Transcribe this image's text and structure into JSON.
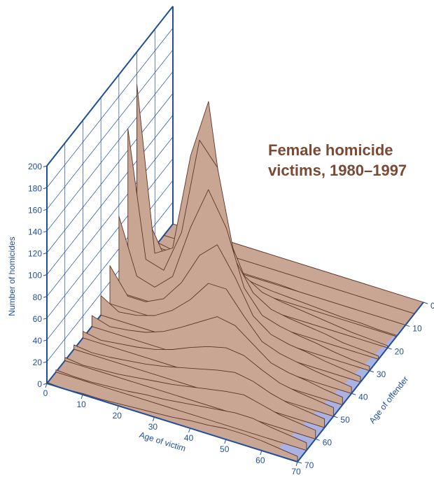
{
  "chart_data": {
    "type": "surface",
    "title": "Female homicide victims, 1980–1997",
    "xlabel": "Age of victim",
    "ylabel": "Age of offender",
    "zlabel": "Number of homicides",
    "x": [
      0,
      5,
      10,
      15,
      20,
      25,
      30,
      35,
      40,
      45,
      50,
      55,
      60,
      65,
      70
    ],
    "y": [
      0,
      5,
      10,
      15,
      20,
      25,
      30,
      35,
      40,
      45,
      50,
      55,
      60,
      65,
      70
    ],
    "z": [
      [
        0,
        0,
        0,
        0,
        0,
        0,
        0,
        0,
        0,
        0,
        0,
        0,
        0,
        0,
        0
      ],
      [
        0,
        0,
        0,
        0,
        0,
        0,
        0,
        0,
        0,
        0,
        0,
        0,
        0,
        0,
        0
      ],
      [
        5,
        2,
        8,
        6,
        2,
        1,
        1,
        1,
        0,
        0,
        0,
        0,
        0,
        0,
        0
      ],
      [
        40,
        8,
        25,
        60,
        30,
        12,
        8,
        6,
        5,
        4,
        3,
        2,
        2,
        1,
        1
      ],
      [
        170,
        20,
        30,
        120,
        175,
        60,
        25,
        15,
        12,
        10,
        8,
        6,
        4,
        3,
        2
      ],
      [
        140,
        25,
        20,
        60,
        150,
        130,
        50,
        25,
        15,
        12,
        10,
        8,
        5,
        4,
        3
      ],
      [
        70,
        20,
        15,
        30,
        80,
        120,
        90,
        40,
        20,
        15,
        12,
        10,
        7,
        5,
        4
      ],
      [
        35,
        12,
        12,
        20,
        40,
        70,
        85,
        60,
        30,
        18,
        14,
        12,
        9,
        7,
        5
      ],
      [
        18,
        8,
        10,
        15,
        25,
        40,
        60,
        60,
        40,
        22,
        16,
        13,
        10,
        8,
        6
      ],
      [
        10,
        5,
        7,
        10,
        16,
        25,
        35,
        45,
        42,
        30,
        18,
        14,
        12,
        9,
        7
      ],
      [
        6,
        3,
        5,
        7,
        10,
        15,
        22,
        28,
        32,
        30,
        22,
        15,
        12,
        10,
        8
      ],
      [
        4,
        2,
        3,
        5,
        7,
        10,
        14,
        18,
        22,
        25,
        22,
        16,
        12,
        10,
        8
      ],
      [
        3,
        1,
        2,
        3,
        5,
        7,
        9,
        12,
        15,
        18,
        20,
        16,
        12,
        10,
        8
      ],
      [
        2,
        1,
        1,
        2,
        3,
        5,
        6,
        8,
        10,
        12,
        14,
        14,
        11,
        9,
        7
      ],
      [
        1,
        0,
        1,
        1,
        2,
        3,
        4,
        5,
        7,
        8,
        10,
        10,
        9,
        7,
        5
      ]
    ],
    "xlim": [
      0,
      70
    ],
    "xticks": [
      0,
      10,
      20,
      30,
      40,
      50,
      60,
      70
    ],
    "ylim": [
      0,
      70
    ],
    "yticks": [
      0,
      10,
      20,
      30,
      40,
      50,
      60,
      70
    ],
    "zlim": [
      0,
      200
    ],
    "zticks": [
      0,
      20,
      40,
      60,
      80,
      100,
      120,
      140,
      160,
      180,
      200
    ],
    "surface_color": "#c9a694",
    "mesh_color": "#5e3326",
    "wall_color": "#1f4e9c"
  }
}
